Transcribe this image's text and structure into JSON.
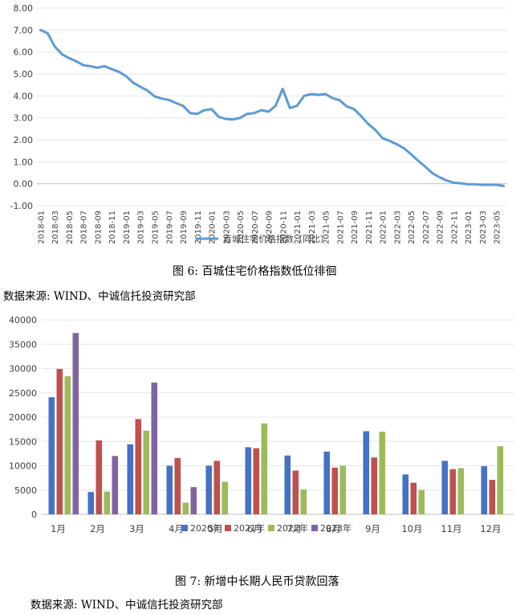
{
  "figure1": {
    "caption": "图 6: 百城住宅价格指数低位徘徊",
    "source": "数据来源: WIND、中诚信托投资研究部"
  },
  "figure2": {
    "caption": "图 7: 新增中长期人民币贷款回落",
    "source": "数据来源: WIND、中诚信托投资研究部"
  },
  "chart_data": [
    {
      "type": "line",
      "title": "",
      "xlabel": "",
      "ylabel": "",
      "ylim": [
        -1.0,
        8.0
      ],
      "yticks": [
        "8.00",
        "7.00",
        "6.00",
        "5.00",
        "4.00",
        "3.00",
        "2.00",
        "1.00",
        "0.00",
        "-1.00"
      ],
      "x_tick_labels": [
        "2018-01",
        "2018-03",
        "2018-05",
        "2018-07",
        "2018-09",
        "2018-11",
        "2019-01",
        "2019-03",
        "2019-05",
        "2019-07",
        "2019-09",
        "2019-11",
        "2020-01",
        "2020-03",
        "2020-05",
        "2020-07",
        "2020-09",
        "2020-11",
        "2021-01",
        "2021-03",
        "2021-05",
        "2021-07",
        "2021-09",
        "2021-11",
        "2022-01",
        "2022-03",
        "2022-05",
        "2022-07",
        "2022-09",
        "2022-11",
        "2023-01",
        "2023-03",
        "2023-05"
      ],
      "legend_position": "bottom",
      "color": "#5B9BD5",
      "series": [
        {
          "name": "百城住宅价格指数（同比）",
          "values": [
            7.0,
            6.85,
            6.25,
            5.9,
            5.72,
            5.58,
            5.4,
            5.35,
            5.28,
            5.35,
            5.22,
            5.1,
            4.9,
            4.6,
            4.42,
            4.25,
            3.98,
            3.88,
            3.82,
            3.68,
            3.55,
            3.22,
            3.18,
            3.35,
            3.4,
            3.05,
            2.95,
            2.93,
            3.0,
            3.18,
            3.22,
            3.35,
            3.28,
            3.55,
            4.32,
            3.45,
            3.55,
            4.0,
            4.08,
            4.05,
            4.08,
            3.9,
            3.8,
            3.52,
            3.4,
            3.08,
            2.72,
            2.45,
            2.08,
            1.95,
            1.8,
            1.62,
            1.35,
            1.05,
            0.78,
            0.48,
            0.3,
            0.15,
            0.05,
            0.02,
            -0.02,
            -0.02,
            -0.05,
            -0.05,
            -0.05,
            -0.1
          ]
        }
      ]
    },
    {
      "type": "bar",
      "title": "",
      "xlabel": "",
      "ylabel": "",
      "ylim": [
        0,
        40000
      ],
      "yticks": [
        "40000",
        "35000",
        "30000",
        "25000",
        "20000",
        "15000",
        "10000",
        "5000",
        "0"
      ],
      "categories": [
        "1月",
        "2月",
        "3月",
        "4月",
        "5月",
        "6月",
        "7月",
        "8月",
        "9月",
        "10月",
        "11月",
        "12月"
      ],
      "legend_position": "bottom",
      "series": [
        {
          "name": "2020年",
          "color": "#4472C4",
          "values": [
            24100,
            4600,
            14400,
            10000,
            10000,
            13800,
            12100,
            12900,
            17100,
            8200,
            11000,
            9900
          ]
        },
        {
          "name": "2021年",
          "color": "#C0504D",
          "values": [
            29900,
            15200,
            19600,
            11600,
            11000,
            13600,
            9000,
            9600,
            11700,
            6500,
            9300,
            7100
          ]
        },
        {
          "name": "2022年",
          "color": "#9BBB59",
          "values": [
            28400,
            4700,
            17200,
            2400,
            6700,
            18700,
            5100,
            10000,
            17000,
            5000,
            9500,
            14000
          ]
        },
        {
          "name": "2023年",
          "color": "#8064A2",
          "values": [
            37300,
            12000,
            27100,
            5600,
            null,
            null,
            null,
            null,
            null,
            null,
            null,
            null
          ]
        }
      ]
    }
  ]
}
